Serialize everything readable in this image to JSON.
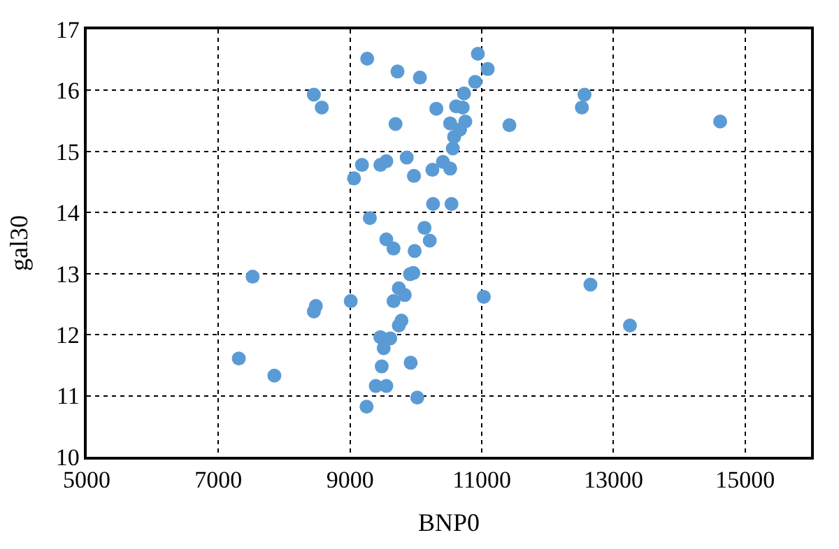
{
  "chart_data": {
    "type": "scatter",
    "xlabel": "BNP0",
    "ylabel": "gal30",
    "marker": "circle",
    "grid": true,
    "xlim": [
      5000,
      16000
    ],
    "xticks": [
      5000,
      7000,
      9000,
      11000,
      13000,
      15000
    ],
    "ylim": [
      10,
      17
    ],
    "yticks": [
      10,
      11,
      12,
      13,
      14,
      15,
      16,
      17
    ],
    "series": [
      {
        "color": "#5b9bd5",
        "x": [
          9260,
          9720,
          10060,
          8450,
          8570,
          9690,
          10310,
          9180,
          9060,
          9460,
          9550,
          9860,
          9970,
          10250,
          10520,
          10260,
          10540,
          9300,
          9550,
          9660,
          9980,
          10130,
          10210,
          10940,
          11090,
          10900,
          10730,
          10610,
          10710,
          10520,
          10750,
          10670,
          10580,
          10560,
          10410,
          11420,
          12560,
          12520,
          14620,
          7520,
          8480,
          8450,
          9010,
          7310,
          7850,
          9250,
          10020,
          9920,
          9390,
          9550,
          9480,
          9460,
          9610,
          9510,
          9740,
          9780,
          9660,
          9740,
          9830,
          9910,
          9960,
          11030,
          12650,
          13250
        ],
        "values": [
          16.52,
          16.31,
          16.21,
          15.93,
          15.72,
          15.45,
          15.7,
          14.78,
          14.56,
          14.78,
          14.84,
          14.9,
          14.6,
          14.7,
          14.72,
          14.14,
          14.14,
          13.91,
          13.56,
          13.41,
          13.37,
          13.75,
          13.54,
          16.6,
          16.35,
          16.14,
          15.95,
          15.74,
          15.72,
          15.46,
          15.49,
          15.36,
          15.24,
          15.05,
          14.83,
          15.43,
          15.93,
          15.72,
          15.49,
          12.95,
          12.47,
          12.38,
          12.55,
          11.61,
          11.33,
          10.82,
          10.97,
          11.54,
          11.16,
          11.16,
          11.48,
          11.96,
          11.94,
          11.78,
          12.15,
          12.23,
          12.55,
          12.76,
          12.65,
          12.99,
          13.01,
          12.62,
          12.82,
          12.15
        ]
      }
    ]
  }
}
